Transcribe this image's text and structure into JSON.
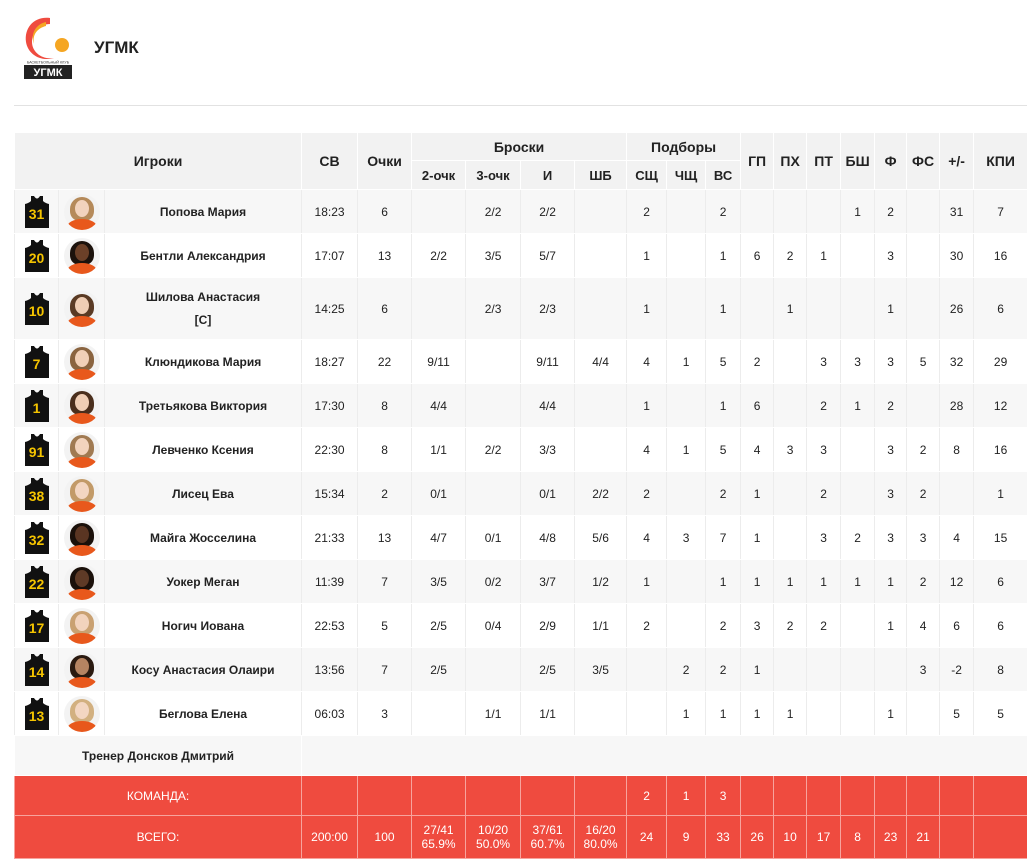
{
  "team": {
    "name": "УГМК",
    "logo_text": "БАСКЕТБОЛЬНЫЙ КЛУБ",
    "logo_word": "УГМК"
  },
  "colors": {
    "accent": "#ef4b3f",
    "jersey": "#111111",
    "jersey_number": "#f5c400"
  },
  "headers": {
    "players": "Игроки",
    "minutes": "СВ",
    "points": "Очки",
    "shots": "Броски",
    "rebounds": "Подборы",
    "two": "2-очк",
    "three": "3-очк",
    "fg": "И",
    "ft": "ШБ",
    "def": "СЩ",
    "off": "ЧЩ",
    "reb": "ВС",
    "ast": "ГП",
    "to": "ПХ",
    "stl": "ПТ",
    "blk": "БШ",
    "pf": "Ф",
    "fd": "ФС",
    "pm": "+/-",
    "eff": "КПИ"
  },
  "players": [
    {
      "number": "31",
      "name": "Попова Мария",
      "captain": "",
      "min": "18:23",
      "pts": "6",
      "two": "",
      "three": "2/2",
      "fg": "2/2",
      "ft": "",
      "def": "2",
      "off": "",
      "reb": "2",
      "ast": "",
      "to": "",
      "stl": "",
      "blk": "1",
      "pf": "2",
      "fd": "",
      "pm": "31",
      "eff": "7",
      "skin": "#f2d3bd",
      "hair": "#b58a5a"
    },
    {
      "number": "20",
      "name": "Бентли Александрия",
      "captain": "",
      "min": "17:07",
      "pts": "13",
      "two": "2/2",
      "three": "3/5",
      "fg": "5/7",
      "ft": "",
      "def": "1",
      "off": "",
      "reb": "1",
      "ast": "6",
      "to": "2",
      "stl": "1",
      "blk": "",
      "pf": "3",
      "fd": "",
      "pm": "30",
      "eff": "16",
      "skin": "#6b4028",
      "hair": "#1c120c"
    },
    {
      "number": "10",
      "name": "Шилова Анастасия",
      "captain": "[C]",
      "min": "14:25",
      "pts": "6",
      "two": "",
      "three": "2/3",
      "fg": "2/3",
      "ft": "",
      "def": "1",
      "off": "",
      "reb": "1",
      "ast": "",
      "to": "1",
      "stl": "",
      "blk": "",
      "pf": "1",
      "fd": "",
      "pm": "26",
      "eff": "6",
      "skin": "#efcdb4",
      "hair": "#5a3a24"
    },
    {
      "number": "7",
      "name": "Клюндикова Мария",
      "captain": "",
      "min": "18:27",
      "pts": "22",
      "two": "9/11",
      "three": "",
      "fg": "9/11",
      "ft": "4/4",
      "def": "4",
      "off": "1",
      "reb": "5",
      "ast": "2",
      "to": "",
      "stl": "3",
      "blk": "3",
      "pf": "3",
      "fd": "5",
      "pm": "32",
      "eff": "29",
      "skin": "#f1d0b8",
      "hair": "#8a6440"
    },
    {
      "number": "1",
      "name": "Третьякова Виктория",
      "captain": "",
      "min": "17:30",
      "pts": "8",
      "two": "4/4",
      "three": "",
      "fg": "4/4",
      "ft": "",
      "def": "1",
      "off": "",
      "reb": "1",
      "ast": "6",
      "to": "",
      "stl": "2",
      "blk": "1",
      "pf": "2",
      "fd": "",
      "pm": "28",
      "eff": "12",
      "skin": "#efcdb4",
      "hair": "#4a2e1c"
    },
    {
      "number": "91",
      "name": "Левченко Ксения",
      "captain": "",
      "min": "22:30",
      "pts": "8",
      "two": "1/1",
      "three": "2/2",
      "fg": "3/3",
      "ft": "",
      "def": "4",
      "off": "1",
      "reb": "5",
      "ast": "4",
      "to": "3",
      "stl": "3",
      "blk": "",
      "pf": "3",
      "fd": "2",
      "pm": "8",
      "eff": "16",
      "skin": "#f2d3bd",
      "hair": "#a07a52"
    },
    {
      "number": "38",
      "name": "Лисец Ева",
      "captain": "",
      "min": "15:34",
      "pts": "2",
      "two": "0/1",
      "three": "",
      "fg": "0/1",
      "ft": "2/2",
      "def": "2",
      "off": "",
      "reb": "2",
      "ast": "1",
      "to": "",
      "stl": "2",
      "blk": "",
      "pf": "3",
      "fd": "2",
      "pm": "",
      "eff": "1",
      "skin": "#f3d6c2",
      "hair": "#c29a68"
    },
    {
      "number": "32",
      "name": "Майга Жосселина",
      "captain": "",
      "min": "21:33",
      "pts": "13",
      "two": "4/7",
      "three": "0/1",
      "fg": "4/8",
      "ft": "5/6",
      "def": "4",
      "off": "3",
      "reb": "7",
      "ast": "1",
      "to": "",
      "stl": "3",
      "blk": "2",
      "pf": "3",
      "fd": "3",
      "pm": "4",
      "eff": "15",
      "skin": "#5a3522",
      "hair": "#1a100a"
    },
    {
      "number": "22",
      "name": "Уокер Меган",
      "captain": "",
      "min": "11:39",
      "pts": "7",
      "two": "3/5",
      "three": "0/2",
      "fg": "3/7",
      "ft": "1/2",
      "def": "1",
      "off": "",
      "reb": "1",
      "ast": "1",
      "to": "1",
      "stl": "1",
      "blk": "1",
      "pf": "1",
      "fd": "2",
      "pm": "12",
      "eff": "6",
      "skin": "#5e3a26",
      "hair": "#1a100a"
    },
    {
      "number": "17",
      "name": "Ногич Иована",
      "captain": "",
      "min": "22:53",
      "pts": "5",
      "two": "2/5",
      "three": "0/4",
      "fg": "2/9",
      "ft": "1/1",
      "def": "2",
      "off": "",
      "reb": "2",
      "ast": "3",
      "to": "2",
      "stl": "2",
      "blk": "",
      "pf": "1",
      "fd": "4",
      "pm": "6",
      "eff": "6",
      "skin": "#f2d3bd",
      "hair": "#c9a172"
    },
    {
      "number": "14",
      "name": "Косу Анастасия Олаири",
      "captain": "",
      "min": "13:56",
      "pts": "7",
      "two": "2/5",
      "three": "",
      "fg": "2/5",
      "ft": "3/5",
      "def": "",
      "off": "2",
      "reb": "2",
      "ast": "1",
      "to": "",
      "stl": "",
      "blk": "",
      "pf": "",
      "fd": "3",
      "pm": "-2",
      "eff": "8",
      "skin": "#b58462",
      "hair": "#2a1a10"
    },
    {
      "number": "13",
      "name": "Беглова Елена",
      "captain": "",
      "min": "06:03",
      "pts": "3",
      "two": "",
      "three": "1/1",
      "fg": "1/1",
      "ft": "",
      "def": "",
      "off": "1",
      "reb": "1",
      "ast": "1",
      "to": "1",
      "stl": "",
      "blk": "",
      "pf": "1",
      "fd": "",
      "pm": "5",
      "eff": "5",
      "skin": "#f3d6c2",
      "hair": "#d2b080"
    }
  ],
  "coach": "Тренер Донсков Дмитрий",
  "team_row": {
    "label": "КОМАНДА:",
    "def": "2",
    "off": "1",
    "reb": "3"
  },
  "total_row": {
    "label": "ВСЕГО:",
    "min": "200:00",
    "pts": "100",
    "two": "27/41",
    "two_pct": "65.9%",
    "three": "10/20",
    "three_pct": "50.0%",
    "fg": "37/61",
    "fg_pct": "60.7%",
    "ft": "16/20",
    "ft_pct": "80.0%",
    "def": "24",
    "off": "9",
    "reb": "33",
    "ast": "26",
    "to": "10",
    "stl": "17",
    "blk": "8",
    "pf": "23",
    "fd": "21",
    "pm": "",
    "eff": ""
  }
}
